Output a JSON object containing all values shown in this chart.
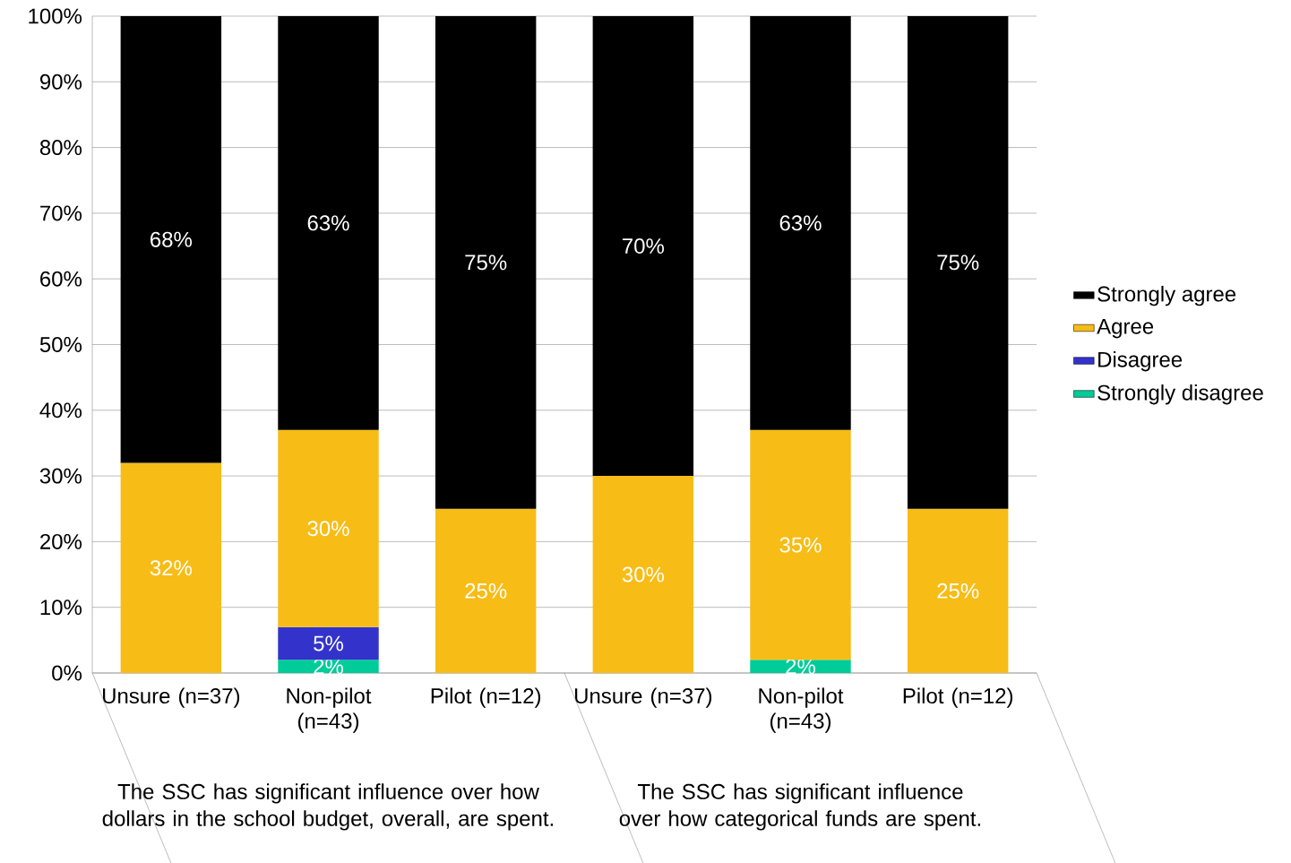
{
  "chart_data": {
    "type": "bar",
    "stacked": true,
    "categories": [
      "Unsure (n=37)",
      "Non-pilot (n=43)",
      "Pilot (n=12)",
      "Unsure (n=37)",
      "Non-pilot (n=43)",
      "Pilot (n=12)"
    ],
    "series": [
      {
        "name": "Strongly disagree",
        "color": "#00cc99",
        "values": [
          null,
          2,
          null,
          null,
          2,
          null
        ],
        "value_labels": [
          null,
          "2%",
          null,
          null,
          "2%",
          null
        ]
      },
      {
        "name": "Disagree",
        "color": "#3333cc",
        "values": [
          null,
          5,
          null,
          null,
          null,
          null
        ],
        "value_labels": [
          null,
          "5%",
          null,
          null,
          null,
          null
        ]
      },
      {
        "name": "Agree",
        "color": "#f8bc16",
        "values": [
          32,
          30,
          25,
          30,
          35,
          25
        ],
        "value_labels": [
          "32%",
          "30%",
          "25%",
          "30%",
          "35%",
          "25%"
        ]
      },
      {
        "name": "Strongly agree",
        "color": "#000000",
        "values": [
          68,
          63,
          75,
          70,
          63,
          75
        ],
        "value_labels": [
          "68%",
          "63%",
          "75%",
          "70%",
          "63%",
          "75%"
        ]
      }
    ],
    "ylim": [
      0,
      100
    ],
    "yticks": [
      {
        "value": 0,
        "label": "0%"
      },
      {
        "value": 10,
        "label": "10%"
      },
      {
        "value": 20,
        "label": "20%"
      },
      {
        "value": 30,
        "label": "30%"
      },
      {
        "value": 40,
        "label": "40%"
      },
      {
        "value": 50,
        "label": "50%"
      },
      {
        "value": 60,
        "label": "60%"
      },
      {
        "value": 70,
        "label": "70%"
      },
      {
        "value": 80,
        "label": "80%"
      },
      {
        "value": 90,
        "label": "90%"
      },
      {
        "value": 100,
        "label": "100%"
      }
    ],
    "grid": "y",
    "legend": "right",
    "annotations": [
      "The SSC has significant influence over how dollars in the school budget, overall, are spent.",
      "The SSC has significant influence over how categorical funds are spent."
    ]
  }
}
